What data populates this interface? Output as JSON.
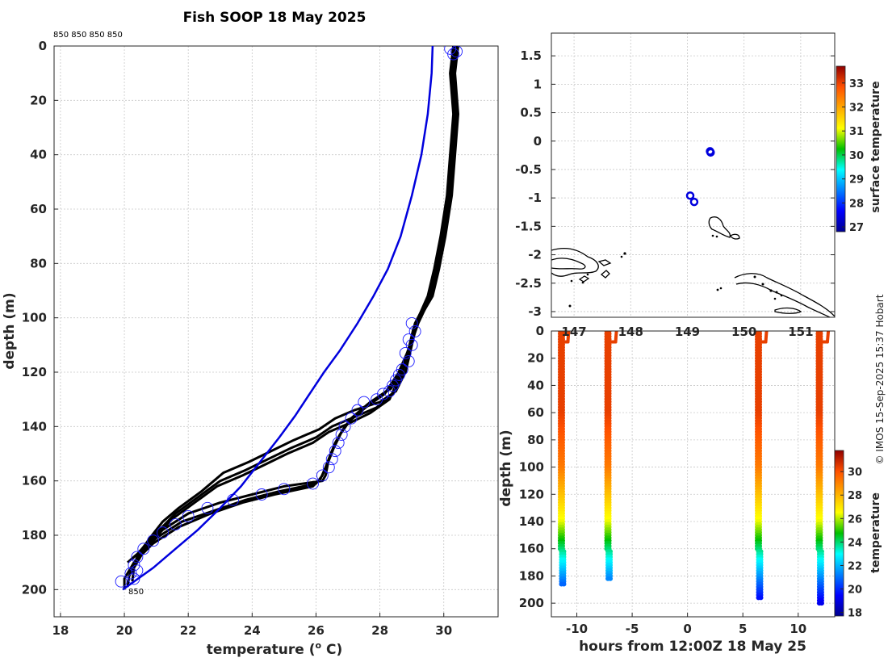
{
  "chart_data": [
    {
      "id": "profile",
      "type": "line",
      "title": "Fish SOOP 18 May 2025",
      "xlabel": "temperature (",
      "xlabel_sup": "o",
      "xlabel_tail": " C)",
      "ylabel": "depth (m)",
      "xlim": [
        17.8,
        31.7
      ],
      "ylim": [
        0,
        210
      ],
      "xticks": [
        18,
        20,
        22,
        24,
        26,
        28,
        30
      ],
      "yticks": [
        0,
        20,
        40,
        60,
        80,
        100,
        120,
        140,
        160,
        180,
        200
      ],
      "top_annotation": "850 850 850 850",
      "bottom_annotation": "850",
      "climatology": {
        "name": "climatology",
        "color": "#0000dd",
        "points": [
          [
            29.65,
            0
          ],
          [
            29.62,
            10
          ],
          [
            29.5,
            25
          ],
          [
            29.3,
            40
          ],
          [
            29.0,
            55
          ],
          [
            28.65,
            70
          ],
          [
            28.25,
            82
          ],
          [
            27.8,
            92
          ],
          [
            27.3,
            102
          ],
          [
            26.75,
            112
          ],
          [
            26.25,
            120
          ],
          [
            25.8,
            128
          ],
          [
            25.35,
            136
          ],
          [
            24.85,
            144
          ],
          [
            24.25,
            153
          ],
          [
            23.65,
            162
          ],
          [
            23.0,
            170
          ],
          [
            22.3,
            178
          ],
          [
            21.6,
            185
          ],
          [
            20.9,
            192
          ],
          [
            19.95,
            200
          ]
        ]
      },
      "series": [
        {
          "name": "profile 1",
          "points": [
            [
              30.4,
              0
            ],
            [
              30.3,
              10
            ],
            [
              30.4,
              25
            ],
            [
              30.3,
              40
            ],
            [
              30.2,
              55
            ],
            [
              30.0,
              70
            ],
            [
              29.8,
              82
            ],
            [
              29.6,
              92
            ],
            [
              29.2,
              100
            ],
            [
              29.0,
              110
            ],
            [
              28.8,
              120
            ],
            [
              28.5,
              127
            ],
            [
              28.0,
              131
            ],
            [
              27.2,
              134
            ],
            [
              26.6,
              137
            ],
            [
              26.1,
              141
            ],
            [
              25.3,
              145
            ],
            [
              24.6,
              149
            ],
            [
              23.9,
              153
            ],
            [
              23.1,
              157
            ],
            [
              22.4,
              164
            ],
            [
              21.7,
              170
            ],
            [
              21.2,
              175
            ],
            [
              20.8,
              181
            ],
            [
              20.5,
              186
            ],
            [
              20.3,
              188
            ]
          ]
        },
        {
          "name": "profile 2",
          "points": [
            [
              30.35,
              0
            ],
            [
              30.25,
              10
            ],
            [
              30.35,
              25
            ],
            [
              30.25,
              40
            ],
            [
              30.15,
              55
            ],
            [
              29.95,
              70
            ],
            [
              29.75,
              82
            ],
            [
              29.55,
              92
            ],
            [
              29.1,
              102
            ],
            [
              28.9,
              112
            ],
            [
              28.7,
              121
            ],
            [
              28.4,
              128
            ],
            [
              27.9,
              133
            ],
            [
              27.1,
              137
            ],
            [
              26.5,
              140
            ],
            [
              26.0,
              144
            ],
            [
              25.2,
              148
            ],
            [
              24.5,
              152
            ],
            [
              23.8,
              156
            ],
            [
              23.0,
              160
            ],
            [
              22.3,
              166
            ],
            [
              21.6,
              172
            ],
            [
              21.1,
              178
            ],
            [
              20.7,
              183
            ],
            [
              20.4,
              187
            ],
            [
              20.2,
              189
            ]
          ]
        },
        {
          "name": "profile 3",
          "points": [
            [
              30.3,
              0
            ],
            [
              30.2,
              10
            ],
            [
              30.3,
              25
            ],
            [
              30.2,
              40
            ],
            [
              30.1,
              55
            ],
            [
              29.9,
              70
            ],
            [
              29.7,
              82
            ],
            [
              29.5,
              92
            ],
            [
              29.05,
              104
            ],
            [
              28.85,
              114
            ],
            [
              28.6,
              122
            ],
            [
              28.3,
              130
            ],
            [
              27.7,
              135
            ],
            [
              27.0,
              139
            ],
            [
              26.4,
              142
            ],
            [
              25.9,
              146
            ],
            [
              25.1,
              150
            ],
            [
              24.4,
              154
            ],
            [
              23.7,
              158
            ],
            [
              22.9,
              162
            ],
            [
              22.2,
              168
            ],
            [
              21.5,
              174
            ],
            [
              21.0,
              180
            ],
            [
              20.6,
              185
            ],
            [
              20.3,
              188
            ],
            [
              20.1,
              190
            ]
          ]
        },
        {
          "name": "profile 4",
          "points": [
            [
              30.45,
              0
            ],
            [
              30.35,
              10
            ],
            [
              30.45,
              25
            ],
            [
              30.35,
              40
            ],
            [
              30.25,
              55
            ],
            [
              30.05,
              70
            ],
            [
              29.85,
              82
            ],
            [
              29.65,
              92
            ],
            [
              29.25,
              100
            ],
            [
              28.95,
              110
            ],
            [
              28.75,
              118
            ],
            [
              28.35,
              126
            ],
            [
              27.7,
              131
            ],
            [
              27.2,
              136
            ],
            [
              26.9,
              140
            ],
            [
              26.6,
              146
            ],
            [
              26.4,
              152
            ],
            [
              26.3,
              158
            ],
            [
              26.2,
              160
            ],
            [
              25.0,
              162
            ],
            [
              24.0,
              165
            ],
            [
              23.0,
              168
            ],
            [
              22.0,
              172
            ],
            [
              21.2,
              178
            ],
            [
              20.6,
              186
            ],
            [
              20.3,
              192
            ],
            [
              20.25,
              197
            ]
          ]
        },
        {
          "name": "profile 5",
          "points": [
            [
              30.4,
              0
            ],
            [
              30.3,
              10
            ],
            [
              30.4,
              25
            ],
            [
              30.3,
              40
            ],
            [
              30.2,
              55
            ],
            [
              30.0,
              70
            ],
            [
              29.8,
              82
            ],
            [
              29.6,
              92
            ],
            [
              29.2,
              102
            ],
            [
              28.9,
              112
            ],
            [
              28.6,
              120
            ],
            [
              28.2,
              127
            ],
            [
              27.6,
              132
            ],
            [
              27.1,
              137
            ],
            [
              26.8,
              142
            ],
            [
              26.55,
              148
            ],
            [
              26.35,
              154
            ],
            [
              26.2,
              158
            ],
            [
              26.0,
              161
            ],
            [
              24.8,
              164
            ],
            [
              23.8,
              167
            ],
            [
              22.8,
              171
            ],
            [
              21.8,
              175
            ],
            [
              21.0,
              181
            ],
            [
              20.4,
              188
            ],
            [
              20.15,
              195
            ],
            [
              20.1,
              199
            ]
          ]
        },
        {
          "name": "profile 6",
          "points": [
            [
              30.35,
              0
            ],
            [
              30.25,
              10
            ],
            [
              30.35,
              25
            ],
            [
              30.25,
              40
            ],
            [
              30.15,
              55
            ],
            [
              29.95,
              70
            ],
            [
              29.75,
              82
            ],
            [
              29.55,
              92
            ],
            [
              29.15,
              103
            ],
            [
              28.85,
              113
            ],
            [
              28.55,
              121
            ],
            [
              28.15,
              128
            ],
            [
              27.55,
              133
            ],
            [
              27.05,
              138
            ],
            [
              26.75,
              143
            ],
            [
              26.5,
              149
            ],
            [
              26.3,
              155
            ],
            [
              26.15,
              159
            ],
            [
              25.9,
              162
            ],
            [
              24.7,
              165
            ],
            [
              23.7,
              168
            ],
            [
              22.7,
              172
            ],
            [
              21.7,
              177
            ],
            [
              20.9,
              183
            ],
            [
              20.3,
              190
            ],
            [
              20.0,
              196
            ],
            [
              20.0,
              200
            ]
          ]
        }
      ],
      "markers": [
        [
          30.2,
          1
        ],
        [
          30.4,
          2
        ],
        [
          30.3,
          3
        ],
        [
          29.0,
          102
        ],
        [
          29.1,
          105
        ],
        [
          28.9,
          108
        ],
        [
          29.0,
          110
        ],
        [
          28.8,
          113
        ],
        [
          28.9,
          116
        ],
        [
          28.7,
          119
        ],
        [
          28.6,
          121
        ],
        [
          28.5,
          123
        ],
        [
          28.4,
          125
        ],
        [
          28.3,
          127
        ],
        [
          28.1,
          128
        ],
        [
          27.9,
          130
        ],
        [
          27.5,
          131
        ],
        [
          27.3,
          134
        ],
        [
          27.1,
          137
        ],
        [
          26.9,
          140
        ],
        [
          26.8,
          143
        ],
        [
          26.7,
          146
        ],
        [
          26.6,
          149
        ],
        [
          26.5,
          152
        ],
        [
          26.4,
          155
        ],
        [
          26.2,
          158
        ],
        [
          25.9,
          161
        ],
        [
          25.0,
          163
        ],
        [
          24.3,
          165
        ],
        [
          23.4,
          167
        ],
        [
          22.6,
          170
        ],
        [
          22.0,
          173
        ],
        [
          21.6,
          176
        ],
        [
          21.2,
          179
        ],
        [
          20.9,
          182
        ],
        [
          20.6,
          185
        ],
        [
          20.4,
          188
        ],
        [
          20.3,
          191
        ],
        [
          20.2,
          194
        ],
        [
          20.3,
          196
        ],
        [
          19.9,
          197
        ],
        [
          20.4,
          193
        ]
      ]
    },
    {
      "id": "map",
      "type": "scatter",
      "colorbar_label": "surface temperature",
      "colorbar_ticks": [
        27,
        28,
        29,
        30,
        31,
        32,
        33
      ],
      "colorbar_range": [
        26.8,
        33.7
      ],
      "xlim": [
        146.6,
        151.6
      ],
      "ylim": [
        -3.1,
        1.9
      ],
      "yticks": [
        1.5,
        1,
        0.5,
        0,
        -0.5,
        -1,
        -1.5,
        -2,
        -2.5,
        -3
      ],
      "yticklabels": [
        "1.5",
        "1",
        "0.5",
        "0",
        "-0.5",
        "-1",
        "-1.5",
        "-2",
        "-2.5",
        "-3"
      ],
      "xticks": [
        147,
        148,
        149,
        150,
        151
      ],
      "xticklabels": [
        "147",
        "148",
        "149",
        "150",
        "151"
      ],
      "stations": [
        [
          149.4,
          -0.18
        ],
        [
          149.41,
          -0.2
        ],
        [
          149.05,
          -0.96
        ],
        [
          149.12,
          -1.07
        ]
      ],
      "station_color": "#0000dd"
    },
    {
      "id": "section",
      "type": "scatter",
      "xlabel": "hours from 12:00Z 18 May 25",
      "ylabel": "depth (m)",
      "colorbar_label": "temperature",
      "colorbar_ticks": [
        18,
        20,
        22,
        24,
        26,
        28,
        30
      ],
      "colorbar_range": [
        17.7,
        31.8
      ],
      "xlim": [
        -12.3,
        13.3
      ],
      "ylim": [
        0,
        210
      ],
      "xticks": [
        -10,
        -5,
        0,
        5,
        10
      ],
      "yticks": [
        0,
        20,
        40,
        60,
        80,
        100,
        120,
        140,
        160,
        180,
        200
      ],
      "casts": [
        {
          "hour": -11.5,
          "max_depth": 187,
          "shift": 0.95
        },
        {
          "hour": -7.3,
          "max_depth": 182,
          "shift": 1.1
        },
        {
          "hour": 6.3,
          "max_depth": 197,
          "shift": 1.05
        },
        {
          "hour": 11.8,
          "max_depth": 201,
          "shift": 1.15
        }
      ]
    }
  ],
  "credit": "© IMOS 15-Sep-2025 15:37 Hobart"
}
